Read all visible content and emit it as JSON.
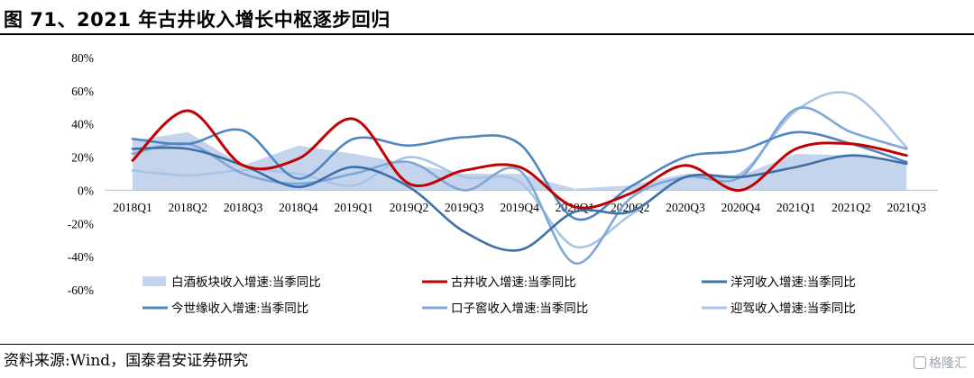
{
  "header": {
    "title": "图 71、2021 年古井收入增长中枢逐步回归"
  },
  "footer": {
    "source": "资料来源:Wind，国泰君安证券研究",
    "watermark": "格隆汇"
  },
  "chart_data": {
    "type": "line",
    "categories": [
      "2018Q1",
      "2018Q2",
      "2018Q3",
      "2018Q4",
      "2019Q1",
      "2019Q2",
      "2019Q3",
      "2019Q4",
      "2020Q1",
      "2020Q2",
      "2020Q3",
      "2020Q4",
      "2021Q1",
      "2021Q2",
      "2021Q3"
    ],
    "ylim": [
      -60,
      80
    ],
    "yticks": [
      "80%",
      "60%",
      "40%",
      "20%",
      "0%",
      "-20%",
      "-40%",
      "-60%"
    ],
    "grid": false,
    "legend_position": "bottom",
    "series": [
      {
        "name": "白酒板块收入增速:当季同比",
        "kind": "area",
        "color": "#c5d4ed",
        "values": [
          30,
          35,
          15,
          27,
          22,
          16,
          10,
          10,
          1,
          3,
          10,
          9,
          22,
          21,
          17
        ]
      },
      {
        "name": "古井收入增速:当季同比",
        "kind": "line",
        "color": "#c00000",
        "values": [
          18,
          48,
          15,
          19,
          43,
          4,
          12,
          14,
          -10,
          -2,
          15,
          0,
          25,
          28,
          21
        ]
      },
      {
        "name": "洋河收入增速:当季同比",
        "kind": "line",
        "color": "#3d6fa8",
        "values": [
          25,
          25,
          15,
          2,
          14,
          2,
          -25,
          -36,
          -13,
          -13,
          8,
          8,
          14,
          21,
          16
        ]
      },
      {
        "name": "今世缘收入增速:当季同比",
        "kind": "line",
        "color": "#4f85c3",
        "values": [
          31,
          28,
          36,
          7,
          31,
          27,
          32,
          28,
          -17,
          2,
          20,
          24,
          35,
          28,
          17
        ]
      },
      {
        "name": "口子窖收入增速:当季同比",
        "kind": "line",
        "color": "#7ea7d8",
        "values": [
          22,
          28,
          10,
          4,
          10,
          17,
          0,
          12,
          -44,
          -5,
          8,
          8,
          49,
          35,
          25
        ]
      },
      {
        "name": "迎驾收入增速:当季同比",
        "kind": "line",
        "color": "#a8c4e6",
        "values": [
          12,
          9,
          12,
          10,
          3,
          20,
          8,
          5,
          -34,
          -15,
          8,
          10,
          48,
          58,
          26
        ]
      }
    ]
  }
}
